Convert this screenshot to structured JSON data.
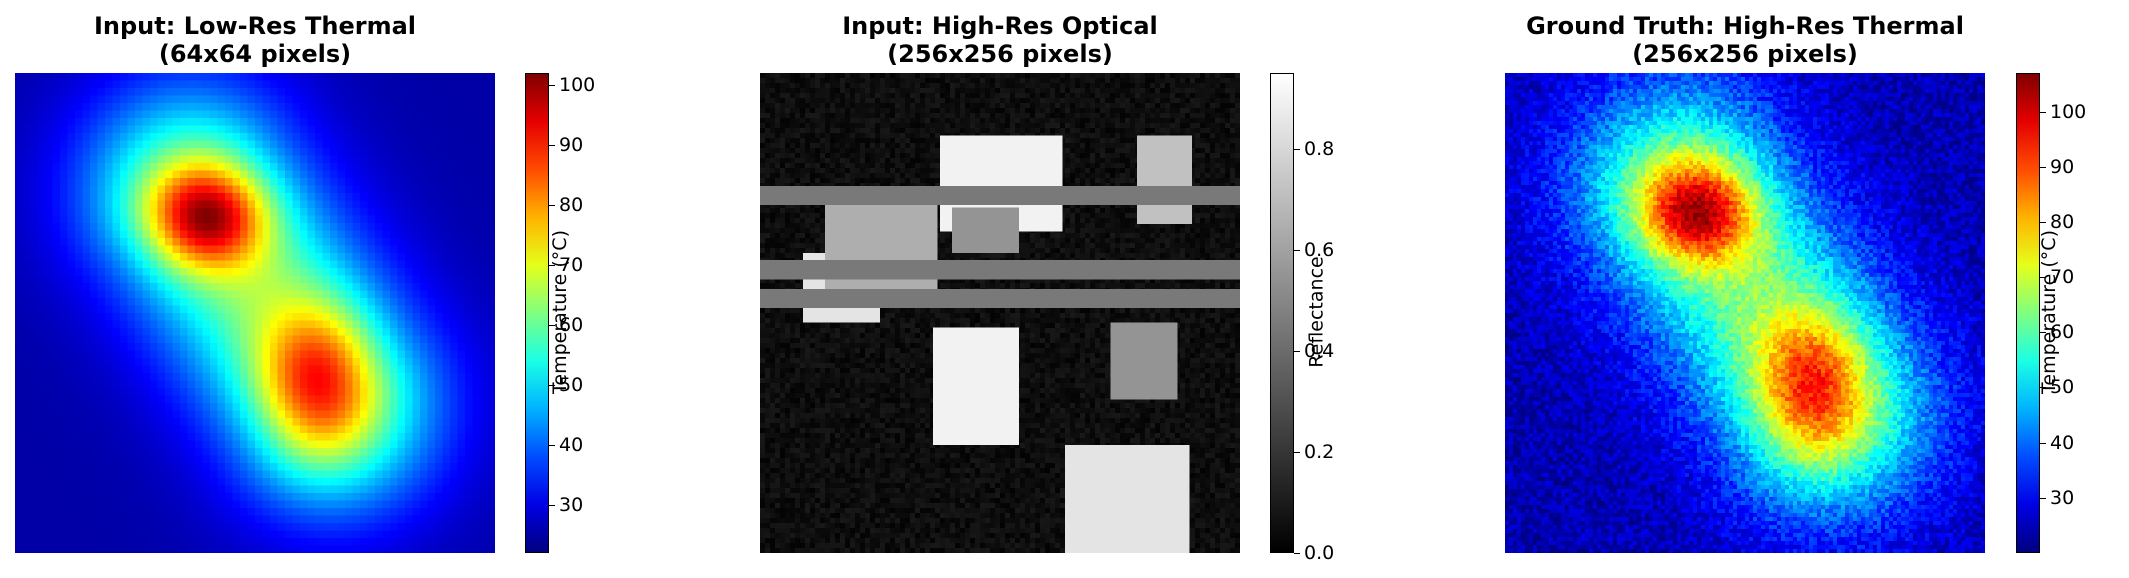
{
  "chart_data": [
    {
      "type": "heatmap",
      "title": "Input: Low-Res Thermal",
      "subtitle": "(64x64 pixels)",
      "colormap": "jet",
      "colorbar": {
        "label": "Temperature (°C)",
        "min": 22,
        "max": 102,
        "ticks": [
          30,
          40,
          50,
          60,
          70,
          80,
          90,
          100
        ]
      },
      "hotspots": [
        {
          "x": 0.4,
          "y": 0.3,
          "peak": 102
        },
        {
          "x": 0.63,
          "y": 0.64,
          "peak": 92
        }
      ],
      "background": 25,
      "texture": "pixelated"
    },
    {
      "type": "heatmap",
      "title": "Input: High-Res Optical",
      "subtitle": "(256x256 pixels)",
      "colormap": "gray",
      "colorbar": {
        "label": "Reflectance",
        "min": 0.0,
        "max": 0.95,
        "ticks": [
          "0.0",
          "0.2",
          "0.4",
          "0.6",
          "0.8"
        ]
      },
      "background": 0.05,
      "regions": [
        {
          "x0": 0.375,
          "y0": 0.13,
          "x1": 0.63,
          "y1": 0.33,
          "value": 0.9
        },
        {
          "x0": 0.785,
          "y0": 0.13,
          "x1": 0.9,
          "y1": 0.315,
          "value": 0.72
        },
        {
          "x0": 0.09,
          "y0": 0.375,
          "x1": 0.25,
          "y1": 0.52,
          "value": 0.85
        },
        {
          "x0": 0.135,
          "y0": 0.275,
          "x1": 0.37,
          "y1": 0.49,
          "value": 0.65
        },
        {
          "x0": 0.4,
          "y0": 0.28,
          "x1": 0.54,
          "y1": 0.375,
          "value": 0.55
        },
        {
          "x0": 0.0,
          "y0": 0.235,
          "x1": 1.0,
          "y1": 0.275,
          "value": 0.45
        },
        {
          "x0": 0.0,
          "y0": 0.39,
          "x1": 1.0,
          "y1": 0.43,
          "value": 0.45
        },
        {
          "x0": 0.0,
          "y0": 0.45,
          "x1": 1.0,
          "y1": 0.49,
          "value": 0.45
        },
        {
          "x0": 0.36,
          "y0": 0.53,
          "x1": 0.54,
          "y1": 0.775,
          "value": 0.9
        },
        {
          "x0": 0.73,
          "y0": 0.52,
          "x1": 0.87,
          "y1": 0.68,
          "value": 0.55
        },
        {
          "x0": 0.635,
          "y0": 0.775,
          "x1": 0.895,
          "y1": 1.0,
          "value": 0.85
        }
      ]
    },
    {
      "type": "heatmap",
      "title": "Ground Truth: High-Res Thermal",
      "subtitle": "(256x256 pixels)",
      "colormap": "jet",
      "colorbar": {
        "label": "Temperature (°C)",
        "min": 20,
        "max": 107,
        "ticks": [
          30,
          40,
          50,
          60,
          70,
          80,
          90,
          100
        ]
      },
      "hotspots": [
        {
          "x": 0.4,
          "y": 0.29,
          "peak": 106
        },
        {
          "x": 0.64,
          "y": 0.65,
          "peak": 95
        }
      ],
      "background": 24,
      "texture": "noisy"
    }
  ]
}
